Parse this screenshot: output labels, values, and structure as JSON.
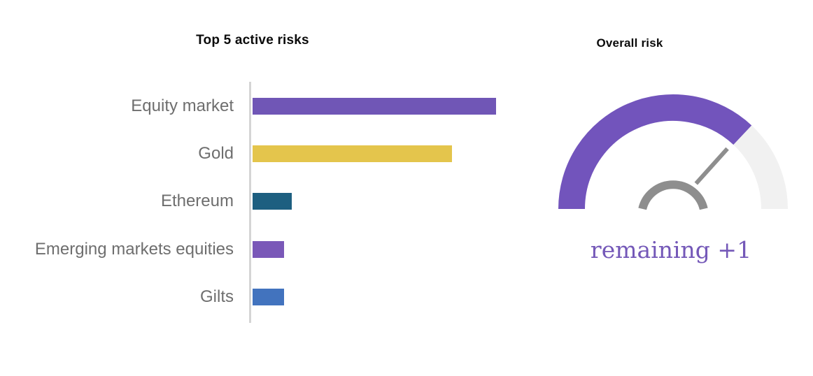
{
  "page": {
    "background": "#ffffff",
    "title_color": "#0b0b0b"
  },
  "chart_data": [
    {
      "type": "bar",
      "orientation": "horizontal",
      "title": "Top 5 active risks",
      "categories": [
        "Equity market",
        "Gold",
        "Ethereum",
        "Emerging markets equities",
        "Gilts"
      ],
      "values_relative_pct": [
        100,
        82,
        16,
        13,
        13
      ],
      "bar_colors": [
        "#7056b6",
        "#e4c54c",
        "#1d5f80",
        "#7a58b8",
        "#4273be"
      ],
      "label_color": "#6e6e6e",
      "axis_line_color": "#d5d5d5",
      "xlabel": "",
      "ylabel": "",
      "value_axis_ticks": "none (unlabeled relative lengths)",
      "gridlines": false,
      "legend": false
    },
    {
      "type": "gauge",
      "title": "Overall risk",
      "range_fraction": [
        0,
        1
      ],
      "value_fraction": 0.74,
      "sweep_total_deg": 180,
      "filled_sweep_deg": 133,
      "center_label": "remaining +1",
      "filled_color": "#7254bc",
      "remaining_color": "#f1f1f1",
      "needle_color": "#8e8e8e",
      "hub_color": "#8e8e8e",
      "label_color": "#7458b8",
      "legend": false
    }
  ]
}
